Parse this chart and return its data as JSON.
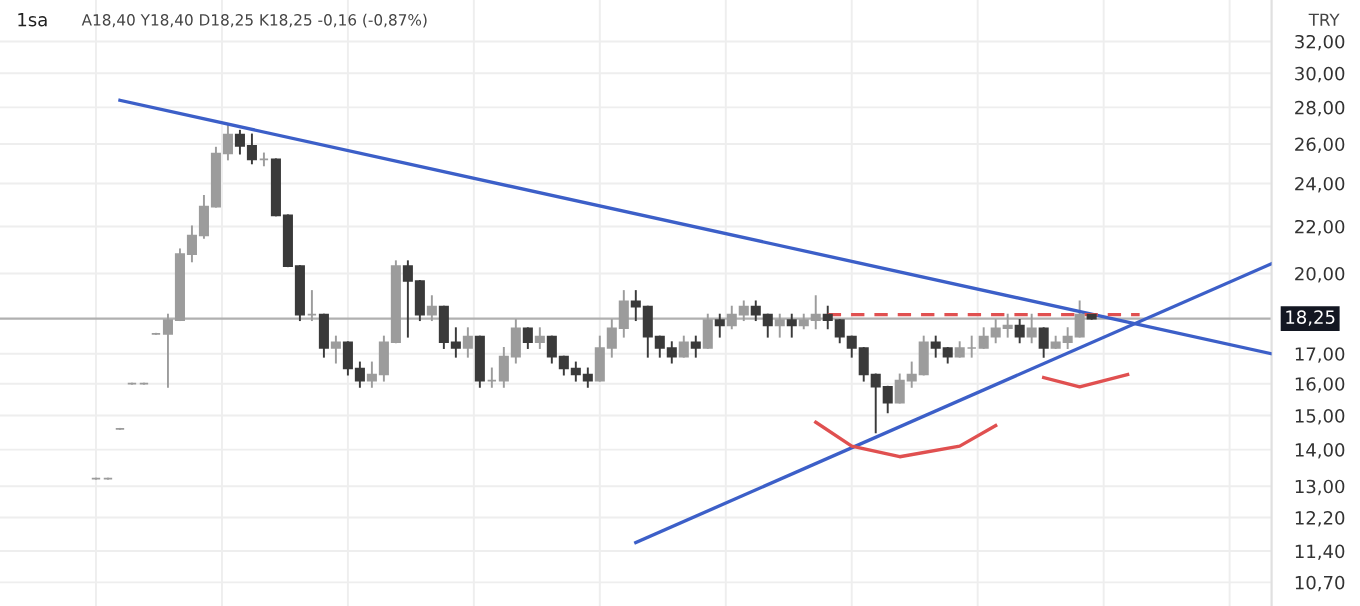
{
  "chart_data": {
    "type": "candlestick",
    "title": "1sa",
    "subtitle": "A18,40 Y18,40 D18,25 K18,25 -0,16 (-0,87%)",
    "annotations": [
      "TRY"
    ],
    "categories": [
      null,
      null,
      null,
      null,
      null,
      null,
      null,
      null,
      null,
      null,
      null,
      null,
      null,
      null,
      null,
      null,
      null,
      null,
      null,
      null,
      null,
      null,
      null,
      null,
      null,
      null,
      null,
      null,
      null,
      null,
      null,
      null,
      null,
      null,
      null,
      null,
      null,
      null,
      null,
      null,
      null,
      null,
      null,
      null,
      null,
      null,
      null,
      null,
      null,
      null,
      null,
      null,
      null,
      null,
      null,
      null,
      null,
      null,
      null,
      null,
      null,
      null,
      null,
      null,
      null,
      null,
      null,
      null,
      null,
      null,
      null,
      null,
      null,
      null,
      null,
      null,
      null,
      null,
      null,
      null,
      null,
      null,
      null,
      null,
      null,
      null,
      null,
      null,
      null,
      null,
      null,
      null,
      null,
      null,
      null,
      null,
      null,
      null,
      null
    ],
    "colors": [
      "#9c9c9c",
      "#9c9c9c",
      "#9c9c9c",
      "#9c9c9c",
      "#9c9c9c",
      "#9c9c9c",
      "#9c9c9c",
      "#9c9c9c",
      "#9c9c9c",
      "#9c9c9c",
      "#9c9c9c",
      "#9c9c9c",
      "#3a3a3a",
      "#3a3a3a",
      "#9c9c9c",
      "#3a3a3a",
      "#3a3a3a",
      "#3a3a3a",
      "#9c9c9c",
      "#3a3a3a",
      "#9c9c9c",
      "#3a3a3a",
      "#3a3a3a",
      "#9c9c9c",
      "#9c9c9c",
      "#9c9c9c",
      "#3a3a3a",
      "#3a3a3a",
      "#9c9c9c",
      "#3a3a3a",
      "#3a3a3a",
      "#9c9c9c",
      "#3a3a3a",
      "#9c9c9c",
      "#9c9c9c",
      "#9c9c9c",
      "#3a3a3a",
      "#9c9c9c",
      "#3a3a3a",
      "#3a3a3a",
      "#3a3a3a",
      "#3a3a3a",
      "#9c9c9c",
      "#9c9c9c",
      "#9c9c9c",
      "#3a3a3a",
      "#3a3a3a",
      "#3a3a3a",
      "#3a3a3a",
      "#9c9c9c",
      "#3a3a3a",
      "#9c9c9c",
      "#3a3a3a",
      "#9c9c9c",
      "#9c9c9c",
      "#3a3a3a",
      "#3a3a3a",
      "#9c9c9c",
      "#3a3a3a",
      "#9c9c9c",
      "#9c9c9c",
      "#3a3a3a",
      "#3a3a3a",
      "#3a3a3a",
      "#3a3a3a",
      "#3a3a3a",
      "#3a3a3a",
      "#9c9c9c",
      "#9c9c9c",
      "#9c9c9c",
      "#3a3a3a",
      "#3a3a3a",
      "#9c9c9c",
      "#9c9c9c",
      "#9c9c9c",
      "#9c9c9c",
      "#9c9c9c",
      "#3a3a3a",
      "#9c9c9c",
      "#3a3a3a",
      "#9c9c9c",
      "#9c9c9c",
      "#9c9c9c",
      "#3a3a3a",
      null,
      null,
      null,
      null,
      null,
      null,
      null,
      null,
      null,
      null,
      null,
      null,
      null,
      null,
      null
    ],
    "ohlc": [
      [
        13.2,
        13.2,
        13.2,
        13.2
      ],
      [
        13.2,
        13.2,
        13.2,
        13.2
      ],
      [
        14.6,
        14.6,
        14.6,
        14.6
      ],
      [
        16.0,
        16.0,
        16.0,
        16.0
      ],
      [
        16.0,
        16.0,
        16.0,
        16.0
      ],
      [
        17.7,
        17.7,
        17.7,
        17.7
      ],
      [
        17.7,
        18.4,
        15.9,
        18.2
      ],
      [
        18.2,
        21.0,
        18.2,
        20.8
      ],
      [
        20.8,
        22.0,
        20.5,
        21.6
      ],
      [
        21.6,
        23.4,
        21.5,
        22.9
      ],
      [
        22.9,
        25.8,
        22.9,
        25.5
      ],
      [
        25.5,
        27.0,
        25.2,
        26.5
      ],
      [
        26.5,
        26.7,
        25.5,
        25.9
      ],
      [
        25.9,
        26.5,
        25.0,
        25.2
      ],
      [
        25.2,
        25.5,
        24.9,
        25.2
      ],
      [
        25.2,
        25.2,
        22.5,
        22.5
      ],
      [
        22.5,
        22.5,
        20.3,
        20.3
      ],
      [
        20.3,
        20.3,
        18.2,
        18.4
      ],
      [
        18.4,
        19.3,
        18.2,
        18.4
      ],
      [
        18.4,
        18.4,
        16.9,
        17.2
      ],
      [
        17.2,
        17.6,
        16.7,
        17.4
      ],
      [
        17.4,
        17.4,
        16.3,
        16.5
      ],
      [
        16.5,
        16.7,
        15.9,
        16.1
      ],
      [
        16.1,
        16.7,
        15.9,
        16.3
      ],
      [
        16.3,
        17.6,
        16.1,
        17.4
      ],
      [
        17.4,
        20.5,
        17.4,
        20.3
      ],
      [
        20.3,
        20.5,
        17.6,
        19.7
      ],
      [
        19.7,
        19.7,
        18.2,
        18.4
      ],
      [
        18.4,
        19.1,
        18.2,
        18.7
      ],
      [
        18.7,
        18.7,
        17.2,
        17.4
      ],
      [
        17.4,
        17.9,
        16.9,
        17.2
      ],
      [
        17.2,
        17.9,
        16.9,
        17.6
      ],
      [
        17.6,
        17.6,
        15.9,
        16.1
      ],
      [
        16.1,
        16.5,
        15.9,
        16.1
      ],
      [
        16.1,
        17.2,
        15.9,
        16.9
      ],
      [
        16.9,
        18.2,
        16.7,
        17.9
      ],
      [
        17.9,
        17.9,
        17.2,
        17.4
      ],
      [
        17.4,
        17.9,
        17.2,
        17.6
      ],
      [
        17.6,
        17.6,
        16.7,
        16.9
      ],
      [
        16.9,
        16.9,
        16.3,
        16.5
      ],
      [
        16.5,
        16.7,
        16.1,
        16.3
      ],
      [
        16.3,
        16.5,
        15.9,
        16.1
      ],
      [
        16.1,
        17.6,
        16.1,
        17.2
      ],
      [
        17.2,
        18.2,
        16.9,
        17.9
      ],
      [
        17.9,
        19.3,
        17.6,
        18.9
      ],
      [
        18.9,
        19.3,
        18.2,
        18.7
      ],
      [
        18.7,
        18.7,
        16.9,
        17.6
      ],
      [
        17.6,
        17.6,
        16.9,
        17.2
      ],
      [
        17.2,
        17.4,
        16.7,
        16.9
      ],
      [
        16.9,
        17.6,
        16.9,
        17.4
      ],
      [
        17.4,
        17.6,
        16.9,
        17.2
      ],
      [
        17.2,
        18.4,
        17.2,
        18.2
      ],
      [
        18.2,
        18.4,
        17.6,
        18.0
      ],
      [
        18.0,
        18.7,
        17.9,
        18.4
      ],
      [
        18.4,
        18.9,
        18.2,
        18.7
      ],
      [
        18.7,
        18.9,
        18.2,
        18.4
      ],
      [
        18.4,
        18.4,
        17.6,
        18.0
      ],
      [
        18.0,
        18.4,
        17.6,
        18.2
      ],
      [
        18.2,
        18.4,
        17.6,
        18.0
      ],
      [
        18.0,
        18.4,
        17.9,
        18.2
      ],
      [
        18.2,
        19.1,
        17.9,
        18.4
      ],
      [
        18.4,
        18.7,
        17.9,
        18.2
      ],
      [
        18.2,
        18.2,
        17.4,
        17.6
      ],
      [
        17.6,
        17.6,
        16.9,
        17.2
      ],
      [
        17.2,
        17.2,
        16.1,
        16.3
      ],
      [
        16.3,
        16.3,
        14.5,
        15.9
      ],
      [
        15.9,
        15.9,
        15.1,
        15.4
      ],
      [
        15.4,
        16.3,
        15.4,
        16.1
      ],
      [
        16.1,
        16.7,
        15.9,
        16.3
      ],
      [
        16.3,
        17.6,
        16.3,
        17.4
      ],
      [
        17.4,
        17.6,
        16.9,
        17.2
      ],
      [
        17.2,
        17.2,
        16.7,
        16.9
      ],
      [
        16.9,
        17.4,
        16.9,
        17.2
      ],
      [
        17.2,
        17.6,
        16.9,
        17.2
      ],
      [
        17.2,
        17.9,
        17.2,
        17.6
      ],
      [
        17.6,
        18.2,
        17.4,
        17.9
      ],
      [
        17.9,
        18.4,
        17.6,
        18.0
      ],
      [
        18.0,
        18.2,
        17.4,
        17.6
      ],
      [
        17.6,
        18.4,
        17.4,
        17.9
      ],
      [
        17.9,
        17.9,
        16.9,
        17.2
      ],
      [
        17.2,
        17.6,
        17.2,
        17.4
      ],
      [
        17.4,
        17.9,
        17.2,
        17.6
      ],
      [
        17.6,
        18.9,
        17.6,
        18.4
      ],
      [
        18.4,
        18.4,
        18.25,
        18.25
      ],
      null,
      null,
      null,
      null,
      null,
      null,
      null,
      null,
      null,
      null,
      null,
      null,
      null,
      null,
      null
    ],
    "series": [
      {
        "type": "line",
        "color": "#3c5fc8",
        "values": [
          null,
          null,
          28.4,
          null,
          null,
          null,
          null,
          null,
          null,
          null,
          null,
          null,
          null,
          null,
          null,
          null,
          null,
          null,
          null,
          null,
          null,
          null,
          null,
          null,
          null,
          null,
          null,
          null,
          null,
          null,
          null,
          null,
          null,
          null,
          null,
          null,
          null,
          null,
          null,
          null,
          null,
          null,
          null,
          null,
          null,
          null,
          null,
          null,
          null,
          null,
          null,
          null,
          null,
          null,
          null,
          null,
          null,
          null,
          null,
          null,
          null,
          null,
          null,
          null,
          null,
          null,
          null,
          null,
          null,
          null,
          null,
          null,
          null,
          null,
          null,
          null,
          null,
          null,
          null,
          null,
          null,
          null,
          null,
          null,
          null,
          null,
          null,
          null,
          null,
          null,
          null,
          null,
          null,
          null,
          null,
          null,
          null,
          null,
          17.0
        ]
      },
      {
        "type": "line",
        "color": "#3c5fc8",
        "values": [
          null,
          null,
          null,
          null,
          null,
          null,
          null,
          null,
          null,
          null,
          null,
          null,
          null,
          null,
          null,
          null,
          null,
          null,
          null,
          null,
          null,
          null,
          null,
          null,
          null,
          null,
          null,
          null,
          null,
          null,
          null,
          null,
          null,
          null,
          null,
          null,
          null,
          null,
          null,
          null,
          null,
          null,
          null,
          null,
          null,
          11.6,
          null,
          null,
          null,
          null,
          null,
          null,
          null,
          null,
          null,
          null,
          null,
          null,
          null,
          null,
          null,
          null,
          null,
          null,
          null,
          null,
          null,
          null,
          null,
          null,
          null,
          null,
          null,
          null,
          null,
          null,
          null,
          null,
          null,
          null,
          null,
          null,
          null,
          null,
          null,
          null,
          null,
          null,
          null,
          null,
          null,
          null,
          null,
          null,
          null,
          null,
          null,
          null,
          20.4
        ]
      },
      {
        "type": "line",
        "color": "#e05050",
        "line_style": "dashed",
        "values": [
          null,
          null,
          null,
          null,
          null,
          null,
          null,
          null,
          null,
          null,
          null,
          null,
          null,
          null,
          null,
          null,
          null,
          null,
          null,
          null,
          null,
          null,
          null,
          null,
          null,
          null,
          null,
          null,
          null,
          null,
          null,
          null,
          null,
          null,
          null,
          null,
          null,
          null,
          null,
          null,
          null,
          null,
          null,
          null,
          null,
          null,
          null,
          null,
          null,
          null,
          null,
          null,
          null,
          null,
          null,
          null,
          null,
          null,
          null,
          null,
          null,
          18.4,
          null,
          null,
          null,
          null,
          null,
          null,
          null,
          null,
          null,
          null,
          null,
          null,
          null,
          null,
          null,
          null,
          null,
          null,
          null,
          null,
          null,
          null,
          null,
          null,
          null,
          18.4,
          null,
          null,
          null,
          null,
          null,
          null,
          null,
          null,
          null,
          null,
          null
        ]
      },
      {
        "type": "line",
        "color": "#e05050",
        "values": [
          null,
          null,
          null,
          null,
          null,
          null,
          null,
          null,
          null,
          null,
          null,
          null,
          null,
          null,
          null,
          null,
          null,
          null,
          null,
          null,
          null,
          null,
          null,
          null,
          null,
          null,
          null,
          null,
          null,
          null,
          null,
          null,
          null,
          null,
          null,
          null,
          null,
          null,
          null,
          null,
          null,
          null,
          null,
          null,
          null,
          null,
          null,
          null,
          null,
          null,
          null,
          null,
          null,
          null,
          null,
          null,
          null,
          null,
          null,
          null,
          14.8,
          null,
          null,
          14.1,
          null,
          null,
          null,
          13.8,
          null,
          null,
          null,
          null,
          14.1,
          null,
          null,
          14.7,
          null,
          null,
          null,
          null,
          null,
          null,
          null,
          null,
          null,
          null,
          null,
          null,
          null,
          null,
          null,
          null,
          null,
          null,
          null,
          null,
          null,
          null,
          null
        ]
      },
      {
        "type": "line",
        "color": "#e05050",
        "values": [
          null,
          null,
          null,
          null,
          null,
          null,
          null,
          null,
          null,
          null,
          null,
          null,
          null,
          null,
          null,
          null,
          null,
          null,
          null,
          null,
          null,
          null,
          null,
          null,
          null,
          null,
          null,
          null,
          null,
          null,
          null,
          null,
          null,
          null,
          null,
          null,
          null,
          null,
          null,
          null,
          null,
          null,
          null,
          null,
          null,
          null,
          null,
          null,
          null,
          null,
          null,
          null,
          null,
          null,
          null,
          null,
          null,
          null,
          null,
          null,
          null,
          null,
          null,
          null,
          null,
          null,
          null,
          null,
          null,
          null,
          null,
          null,
          null,
          null,
          null,
          null,
          null,
          null,
          null,
          16.2,
          null,
          null,
          15.9,
          null,
          null,
          null,
          16.3,
          null,
          null,
          null,
          null,
          null,
          null,
          null,
          null,
          null,
          null,
          null,
          null
        ]
      }
    ],
    "ref_lines": [
      {
        "axis": "y",
        "value": 18.25,
        "label": "18,25",
        "color": "#b0b0b0"
      }
    ],
    "log": true,
    "ylim": [
      10.2,
      34.8
    ],
    "yticks": [
      {
        "value": 10.7,
        "label": "10,70"
      },
      {
        "value": 11.4,
        "label": "11,40"
      },
      {
        "value": 12.2,
        "label": "12,20"
      },
      {
        "value": 13,
        "label": "13,00"
      },
      {
        "value": 14,
        "label": "14,00"
      },
      {
        "value": 15,
        "label": "15,00"
      },
      {
        "value": 16,
        "label": "16,00"
      },
      {
        "value": 17,
        "label": "17,00"
      },
      {
        "value": 20,
        "label": "20,00"
      },
      {
        "value": 22,
        "label": "22,00"
      },
      {
        "value": 24,
        "label": "24,00"
      },
      {
        "value": 26,
        "label": "26,00"
      },
      {
        "value": 28,
        "label": "28,00"
      },
      {
        "value": 30,
        "label": "30,00"
      },
      {
        "value": 32,
        "label": "32,00"
      }
    ],
    "tick_labels": "y",
    "grid": true
  }
}
